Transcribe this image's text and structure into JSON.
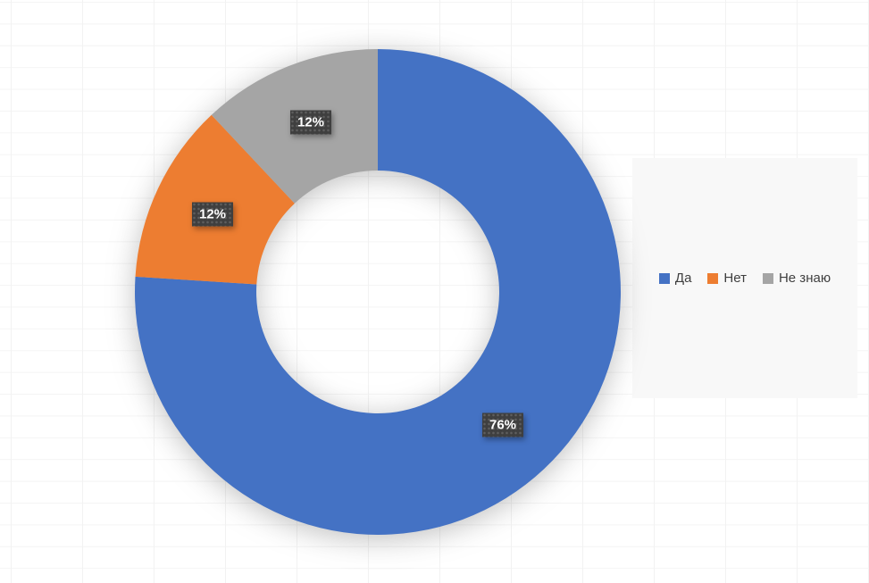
{
  "chart_data": {
    "type": "pie",
    "subtype": "donut",
    "categories": [
      "Да",
      "Нет",
      "Не знаю"
    ],
    "values": [
      76,
      12,
      12
    ],
    "labels": [
      "76%",
      "12%",
      "12%"
    ],
    "slugs": [
      "yes",
      "no",
      "dont-know"
    ],
    "colors": [
      "#4472C4",
      "#ED7D31",
      "#A5A5A5"
    ],
    "label_text_color": "#FFFFFF",
    "label_box_color": "#3F3F3F",
    "start_angle_deg": 0,
    "direction": "clockwise",
    "donut_hole_ratio": 0.5,
    "legend_position": "right"
  },
  "legend": {
    "items": [
      {
        "label": "Да",
        "color": "#4472C4"
      },
      {
        "label": "Нет",
        "color": "#ED7D31"
      },
      {
        "label": "Не знаю",
        "color": "#A5A5A5"
      }
    ]
  }
}
